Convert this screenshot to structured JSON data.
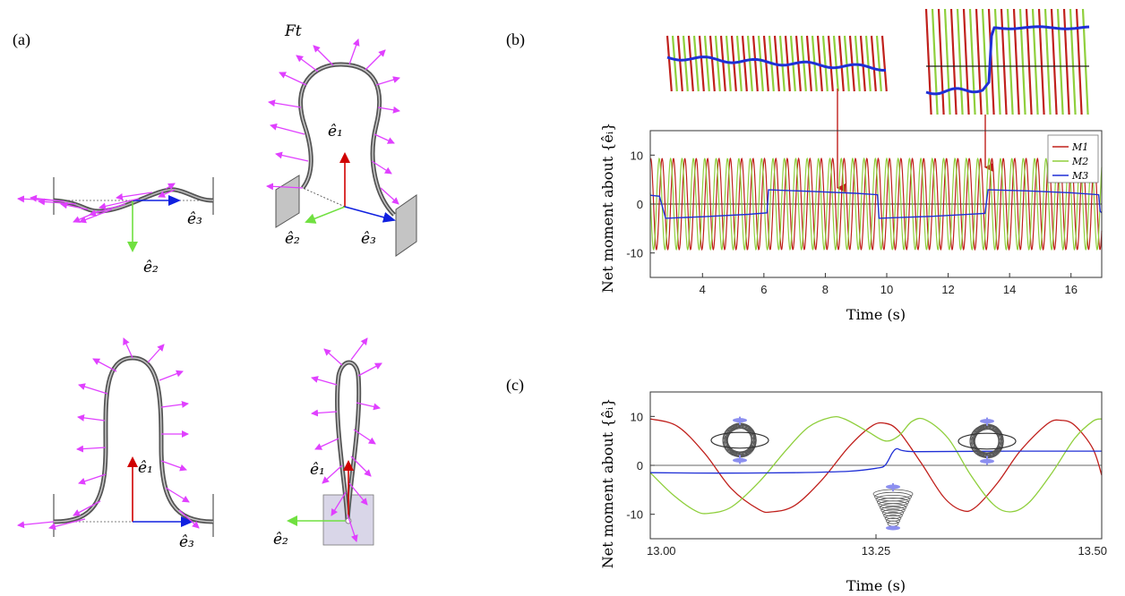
{
  "panels": {
    "a": "(a)",
    "b": "(b)",
    "c": "(c)"
  },
  "diagram_a": {
    "force_label": "Ft",
    "e1": "ê₁",
    "e2": "ê₂",
    "e3": "ê₃"
  },
  "colors": {
    "M1": "#c0201c",
    "M2": "#8fcf3c",
    "M3": "#1f2fd6",
    "arrow_e1": "#d00000",
    "arrow_e2": "#70e040",
    "arrow_e3": "#1020e0",
    "force": "#e040ff",
    "rod": "#555555"
  },
  "chart_data": [
    {
      "id": "b",
      "type": "line",
      "xlabel": "Time (s)",
      "ylabel": "Net moment about {êᵢ}",
      "xlim": [
        2.3,
        17.0
      ],
      "ylim": [
        -15,
        15
      ],
      "xticks": [
        4,
        6,
        8,
        10,
        12,
        14,
        16
      ],
      "yticks": [
        -10,
        0,
        10
      ],
      "legend_position": "top-right",
      "grid": false,
      "oscillation": {
        "amplitude": 9.3,
        "frequency_hz": 2.7
      },
      "series": [
        {
          "name": "M1",
          "kind": "oscillating",
          "phase": 0.0
        },
        {
          "name": "M2",
          "kind": "oscillating",
          "phase": 1.57
        },
        {
          "name": "M3",
          "kind": "step",
          "points": [
            [
              2.3,
              1.8
            ],
            [
              2.6,
              1.6
            ],
            [
              2.8,
              -2.9
            ],
            [
              4.0,
              -2.6
            ],
            [
              5.5,
              -2.1
            ],
            [
              6.1,
              -1.8
            ],
            [
              6.15,
              2.9
            ],
            [
              7.5,
              2.6
            ],
            [
              9.0,
              2.2
            ],
            [
              9.7,
              1.9
            ],
            [
              9.75,
              -2.9
            ],
            [
              11.5,
              -2.5
            ],
            [
              13.2,
              -1.9
            ],
            [
              13.3,
              2.9
            ],
            [
              14.5,
              2.7
            ],
            [
              16.0,
              2.3
            ],
            [
              16.9,
              1.9
            ],
            [
              16.95,
              -1.5
            ],
            [
              17.0,
              -1.8
            ]
          ]
        }
      ],
      "annotation_times": [
        8.4,
        13.4
      ]
    },
    {
      "id": "c",
      "type": "line",
      "xlabel": "Time (s)",
      "ylabel": "Net moment about {êᵢ}",
      "xlim": [
        13.0,
        13.5
      ],
      "ylim": [
        -15,
        15
      ],
      "xticks": [
        "13.00",
        "13.25",
        "13.50"
      ],
      "yticks": [
        -10,
        0,
        10
      ],
      "grid": false,
      "series": [
        {
          "name": "M1",
          "points": [
            [
              13.0,
              9.5
            ],
            [
              13.03,
              8.0
            ],
            [
              13.06,
              2.5
            ],
            [
              13.09,
              -4.8
            ],
            [
              13.12,
              -9.0
            ],
            [
              13.135,
              -9.5
            ],
            [
              13.16,
              -8.2
            ],
            [
              13.19,
              -3.0
            ],
            [
              13.22,
              3.8
            ],
            [
              13.245,
              8.0
            ],
            [
              13.26,
              8.6
            ],
            [
              13.275,
              7.0
            ],
            [
              13.3,
              0.5
            ],
            [
              13.325,
              -6.5
            ],
            [
              13.345,
              -9.2
            ],
            [
              13.36,
              -8.6
            ],
            [
              13.385,
              -3.5
            ],
            [
              13.41,
              3.0
            ],
            [
              13.44,
              8.5
            ],
            [
              13.455,
              9.2
            ],
            [
              13.47,
              8.2
            ],
            [
              13.49,
              3.5
            ],
            [
              13.5,
              -2.0
            ]
          ]
        },
        {
          "name": "M2",
          "points": [
            [
              13.0,
              -1.5
            ],
            [
              13.025,
              -6.0
            ],
            [
              13.05,
              -9.3
            ],
            [
              13.065,
              -9.8
            ],
            [
              13.09,
              -8.5
            ],
            [
              13.12,
              -3.5
            ],
            [
              13.15,
              3.0
            ],
            [
              13.175,
              7.8
            ],
            [
              13.2,
              9.8
            ],
            [
              13.215,
              9.5
            ],
            [
              13.24,
              7.0
            ],
            [
              13.26,
              5.0
            ],
            [
              13.275,
              6.0
            ],
            [
              13.29,
              9.0
            ],
            [
              13.305,
              9.3
            ],
            [
              13.33,
              5.5
            ],
            [
              13.355,
              -2.0
            ],
            [
              13.38,
              -8.0
            ],
            [
              13.4,
              -9.5
            ],
            [
              13.42,
              -7.5
            ],
            [
              13.445,
              -1.5
            ],
            [
              13.47,
              5.5
            ],
            [
              13.49,
              9.0
            ],
            [
              13.5,
              9.5
            ]
          ]
        },
        {
          "name": "M3",
          "points": [
            [
              13.0,
              -1.5
            ],
            [
              13.08,
              -1.6
            ],
            [
              13.16,
              -1.5
            ],
            [
              13.22,
              -1.2
            ],
            [
              13.25,
              -0.6
            ],
            [
              13.26,
              0.0
            ],
            [
              13.268,
              2.5
            ],
            [
              13.273,
              3.4
            ],
            [
              13.28,
              3.0
            ],
            [
              13.3,
              2.8
            ],
            [
              13.4,
              2.9
            ],
            [
              13.5,
              2.9
            ]
          ]
        }
      ]
    }
  ]
}
